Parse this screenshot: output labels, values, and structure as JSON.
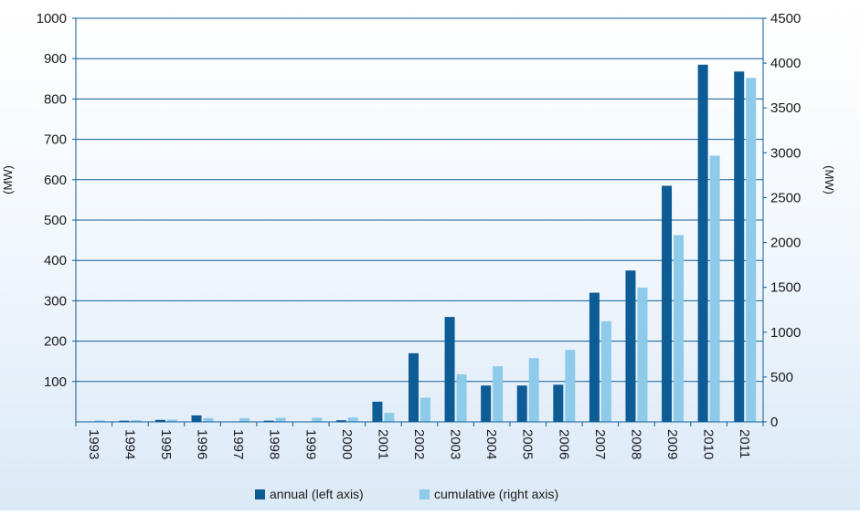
{
  "chart_data": {
    "type": "bar",
    "categories": [
      "1993",
      "1994",
      "1995",
      "1996",
      "1997",
      "1998",
      "1999",
      "2000",
      "2001",
      "2002",
      "2003",
      "2004",
      "2005",
      "2006",
      "2007",
      "2008",
      "2009",
      "2010",
      "2011"
    ],
    "series": [
      {
        "name": "annual (left axis)",
        "axis": "left",
        "color": "#0d5c95",
        "values": [
          1,
          3,
          5,
          16,
          1,
          3,
          1,
          4,
          50,
          170,
          260,
          90,
          90,
          92,
          320,
          375,
          585,
          885,
          868
        ]
      },
      {
        "name": "cumulative (right axis)",
        "axis": "right",
        "color": "#8ecae9",
        "values": [
          17,
          20,
          25,
          41,
          42,
          45,
          46,
          50,
          100,
          270,
          530,
          620,
          710,
          802,
          1122,
          1497,
          2082,
          2967,
          3835
        ]
      }
    ],
    "yleft": {
      "label": "(MW)",
      "lim": [
        0,
        1000
      ],
      "ticks": [
        100,
        200,
        300,
        400,
        500,
        600,
        700,
        800,
        900,
        1000
      ]
    },
    "yright": {
      "label": "(MW)",
      "lim": [
        0,
        4500
      ],
      "ticks": [
        0,
        500,
        1000,
        1500,
        2000,
        2500,
        3000,
        3500,
        4000,
        4500
      ]
    },
    "grid": true,
    "grid_color": "#0d5c95",
    "legend_position": "bottom-center"
  }
}
